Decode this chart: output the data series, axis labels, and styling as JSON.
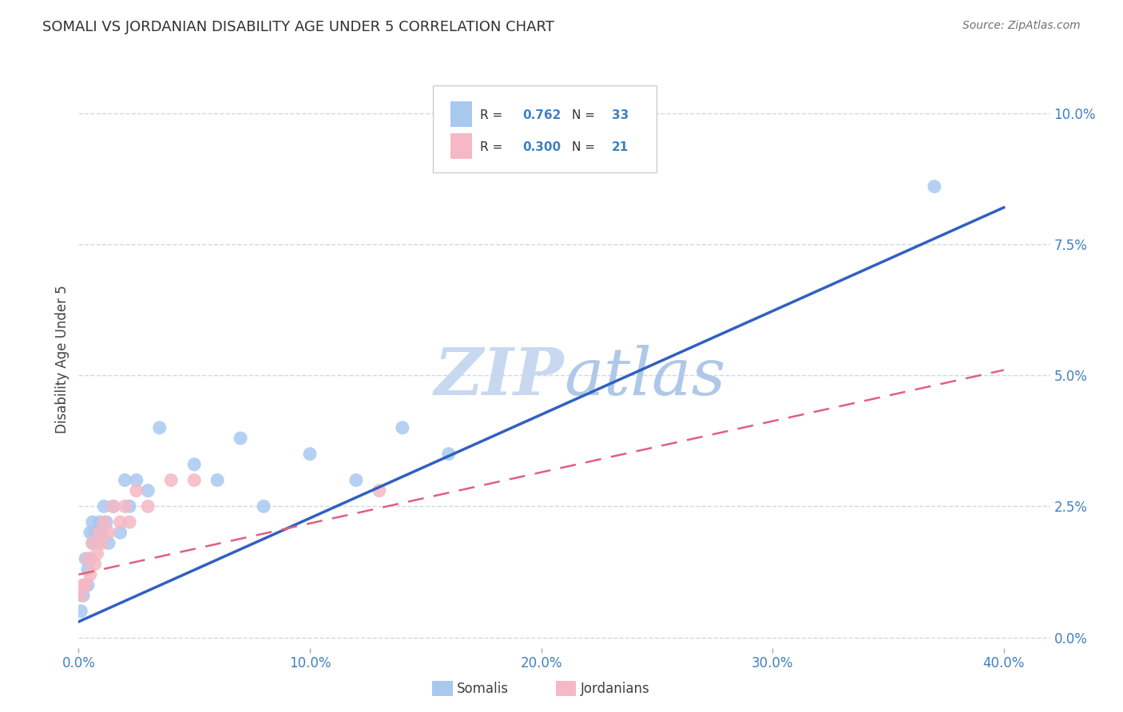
{
  "title": "SOMALI VS JORDANIAN DISABILITY AGE UNDER 5 CORRELATION CHART",
  "source": "Source: ZipAtlas.com",
  "xlabel_tick_vals": [
    0.0,
    0.1,
    0.2,
    0.3,
    0.4
  ],
  "ylabel_tick_vals": [
    0.0,
    0.025,
    0.05,
    0.075,
    0.1
  ],
  "ylabel_label": "Disability Age Under 5",
  "xmin": 0.0,
  "xmax": 0.42,
  "ymin": -0.002,
  "ymax": 0.108,
  "somali_R": "0.762",
  "somali_N": "33",
  "jordanian_R": "0.300",
  "jordanian_N": "21",
  "somali_color": "#a8c8f0",
  "jordanian_color": "#f5b8c4",
  "trendline_somali_color": "#3060c0",
  "trendline_jordan_color": "#e06080",
  "watermark_zip": "ZIP",
  "watermark_atlas": "atlas",
  "watermark_color_zip": "#c8d8f0",
  "watermark_color_atlas": "#b0c8e8",
  "background_color": "#ffffff",
  "grid_color": "#d0d8e8",
  "axis_color": "#4080c0",
  "title_color": "#303030",
  "title_fontsize": 13,
  "somali_x": [
    0.001,
    0.002,
    0.003,
    0.003,
    0.004,
    0.004,
    0.005,
    0.005,
    0.006,
    0.006,
    0.007,
    0.008,
    0.009,
    0.01,
    0.011,
    0.012,
    0.013,
    0.015,
    0.018,
    0.02,
    0.022,
    0.025,
    0.03,
    0.035,
    0.05,
    0.06,
    0.07,
    0.08,
    0.1,
    0.12,
    0.14,
    0.16,
    0.37
  ],
  "somali_y": [
    0.005,
    0.008,
    0.01,
    0.015,
    0.01,
    0.013,
    0.015,
    0.02,
    0.018,
    0.022,
    0.02,
    0.018,
    0.022,
    0.02,
    0.025,
    0.022,
    0.018,
    0.025,
    0.02,
    0.03,
    0.025,
    0.03,
    0.028,
    0.04,
    0.033,
    0.03,
    0.038,
    0.025,
    0.035,
    0.03,
    0.04,
    0.035,
    0.086
  ],
  "jordanian_x": [
    0.001,
    0.002,
    0.003,
    0.004,
    0.005,
    0.006,
    0.007,
    0.008,
    0.009,
    0.01,
    0.011,
    0.013,
    0.015,
    0.018,
    0.02,
    0.022,
    0.025,
    0.03,
    0.04,
    0.05,
    0.13
  ],
  "jordanian_y": [
    0.008,
    0.01,
    0.01,
    0.015,
    0.012,
    0.018,
    0.014,
    0.016,
    0.02,
    0.018,
    0.022,
    0.02,
    0.025,
    0.022,
    0.025,
    0.022,
    0.028,
    0.025,
    0.03,
    0.03,
    0.028
  ],
  "trendline_somali_x0": 0.0,
  "trendline_somali_y0": 0.003,
  "trendline_somali_x1": 0.4,
  "trendline_somali_y1": 0.082,
  "trendline_jordan_x0": 0.0,
  "trendline_jordan_y0": 0.012,
  "trendline_jordan_x1": 0.4,
  "trendline_jordan_y1": 0.051
}
